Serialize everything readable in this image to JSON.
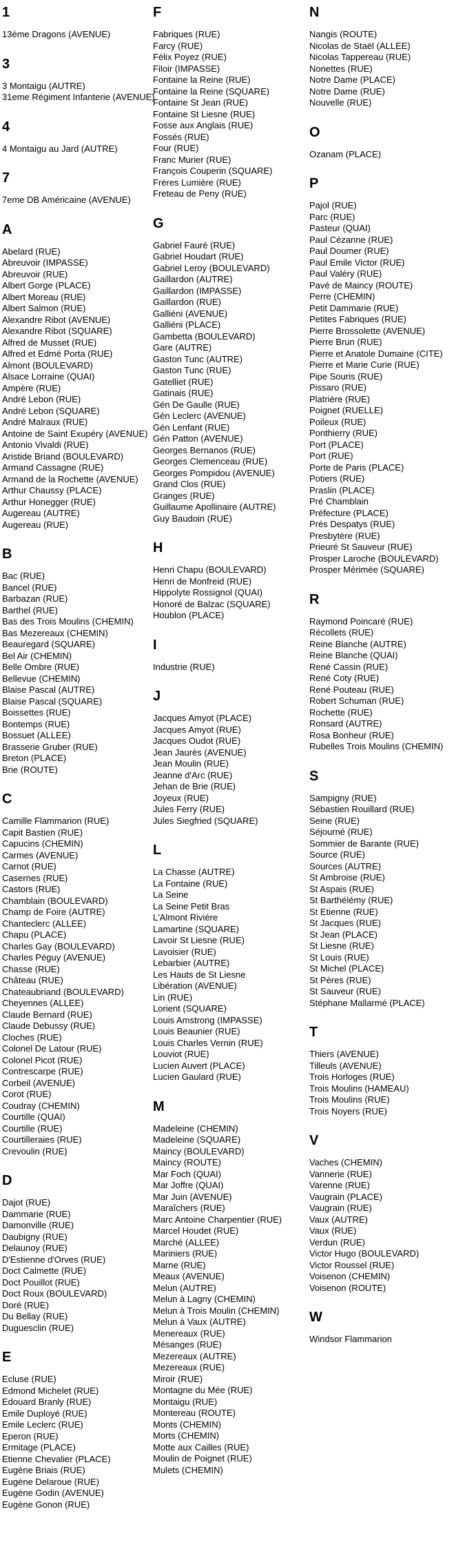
{
  "page": {
    "background": "#ffffff",
    "text_color": "#000000"
  },
  "index": {
    "columns": [
      {
        "sections": [
          {
            "letter": "1",
            "entries": [
              "13ème Dragons (AVENUE)"
            ]
          },
          {
            "letter": "3",
            "entries": [
              "3 Montaigu (AUTRE)",
              "31eme Régiment Infanterie (AVENUE)"
            ]
          },
          {
            "letter": "4",
            "entries": [
              "4 Montaigu au Jard (AUTRE)"
            ]
          },
          {
            "letter": "7",
            "entries": [
              "7eme DB Américaine (AVENUE)"
            ]
          },
          {
            "letter": "A",
            "entries": [
              "Abelard (RUE)",
              "Abreuvoir (IMPASSE)",
              "Abreuvoir (RUE)",
              "Albert Gorge (PLACE)",
              "Albert Moreau (RUE)",
              "Albert Salmon (RUE)",
              "Alexandre Ribot (AVENUE)",
              "Alexandre Ribot (SQUARE)",
              "Alfred de Musset (RUE)",
              "Alfred et Edmé Porta (RUE)",
              "Almont (BOULEVARD)",
              "Alsace Lorraine (QUAI)",
              "Ampère (RUE)",
              "André Lebon (RUE)",
              "André Lebon (SQUARE)",
              "André Malraux (RUE)",
              "Antoine de Saint Exupéry (AVENUE)",
              "Antonio Vivaldi (RUE)",
              "Aristide Briand (BOULEVARD)",
              "Armand Cassagne (RUE)",
              "Armand de la Rochette (AVENUE)",
              "Arthur Chaussy (PLACE)",
              "Arthur Honegger (RUE)",
              "Augereau (AUTRE)",
              "Augereau (RUE)"
            ]
          },
          {
            "letter": "B",
            "entries": [
              "Bac (RUE)",
              "Bancel (RUE)",
              "Barbazan (RUE)",
              "Barthel (RUE)",
              "Bas des Trois Moulins (CHEMIN)",
              "Bas Mezereaux (CHEMIN)",
              "Beauregard (SQUARE)",
              "Bel Air (CHEMIN)",
              "Belle Ombre (RUE)",
              "Bellevue (CHEMIN)",
              "Blaise Pascal (AUTRE)",
              "Blaise Pascal (SQUARE)",
              "Boissettes (RUE)",
              "Bontemps (RUE)",
              "Bossuet (ALLEE)",
              "Brasserie Gruber (RUE)",
              "Breton (PLACE)",
              "Brie (ROUTE)"
            ]
          },
          {
            "letter": "C",
            "entries": [
              "Camille Flammarion (RUE)",
              "Capit Bastien (RUE)",
              "Capucins (CHEMIN)",
              "Carmes (AVENUE)",
              "Carnot (RUE)",
              "Casernes (RUE)",
              "Castors (RUE)",
              "Chamblain (BOULEVARD)",
              "Champ de Foire (AUTRE)",
              "Chanteclerc (ALLEE)",
              "Chapu (PLACE)",
              "Charles Gay (BOULEVARD)",
              "Charles Péguy (AVENUE)",
              "Chasse (RUE)",
              "Château (RUE)",
              "Chateaubriand (BOULEVARD)",
              "Cheyennes (ALLEE)",
              "Claude Bernard (RUE)",
              "Claude Debussy (RUE)",
              "Cloches (RUE)",
              "Colonel De Latour (RUE)",
              "Colonel Picot (RUE)",
              "Contrescarpe (RUE)",
              "Corbeil (AVENUE)",
              "Corot (RUE)",
              "Coudray (CHEMIN)",
              "Courtille (QUAI)",
              "Courtille (RUE)",
              "Courtilleraies (RUE)",
              "Crevoulin (RUE)"
            ]
          },
          {
            "letter": "D",
            "entries": [
              "Dajot (RUE)",
              "Dammarie (RUE)",
              "Damonville (RUE)",
              "Daubigny (RUE)",
              "Delaunoy (RUE)",
              "D'Estienne d'Orves (RUE)",
              "Doct Calmette (RUE)",
              "Doct Pouillot (RUE)",
              "Doct Roux (BOULEVARD)",
              "Doré (RUE)",
              "Du Bellay (RUE)",
              "Duguesclin (RUE)"
            ]
          },
          {
            "letter": "E",
            "entries": [
              "Ecluse (RUE)",
              "Edmond Michelet (RUE)",
              "Edouard Branly (RUE)",
              "Emile Duployé (RUE)",
              "Emile Leclerc (RUE)",
              "Eperon (RUE)",
              "Ermitage (PLACE)",
              "Etienne Chevalier (PLACE)",
              "Eugène Briais (RUE)",
              "Eugène Delaroue (RUE)",
              "Eugène Godin (AVENUE)",
              "Eugène Gonon (RUE)"
            ]
          }
        ]
      },
      {
        "sections": [
          {
            "letter": "F",
            "entries": [
              "Fabriques (RUE)",
              "Farcy (RUE)",
              "Félix Poyez (RUE)",
              "Filoir (IMPASSE)",
              "Fontaine la Reine (RUE)",
              "Fontaine la Reine (SQUARE)",
              "Fontaine St Jean (RUE)",
              "Fontaine St Liesne (RUE)",
              "Fosse aux Anglais (RUE)",
              "Fossés (RUE)",
              "Four (RUE)",
              "Franc Murier (RUE)",
              "François Couperin (SQUARE)",
              "Frères Lumière (RUE)",
              "Freteau de Peny (RUE)"
            ]
          },
          {
            "letter": "G",
            "entries": [
              "Gabriel Fauré (RUE)",
              "Gabriel Houdart (RUE)",
              "Gabriel Leroy (BOULEVARD)",
              "Gaillardon (AUTRE)",
              "Gaillardon (IMPASSE)",
              "Gaillardon (RUE)",
              "Galliéni (AVENUE)",
              "Galliéni (PLACE)",
              "Gambetta (BOULEVARD)",
              "Gare (AUTRE)",
              "Gaston Tunc (AUTRE)",
              "Gaston Tunc (RUE)",
              "Gatelliet (RUE)",
              "Gatinais (RUE)",
              "Gén De Gaulle (RUE)",
              "Gén Leclerc (AVENUE)",
              "Gén Lenfant (RUE)",
              "Gén Patton (AVENUE)",
              "Georges Bernanos (RUE)",
              "Georges Clemenceau (RUE)",
              "Georges Pompidou (AVENUE)",
              "Grand Clos (RUE)",
              "Granges (RUE)",
              "Guillaume Apollinaire (AUTRE)",
              "Guy Baudoin (RUE)"
            ]
          },
          {
            "letter": "H",
            "entries": [
              "Henri Chapu (BOULEVARD)",
              "Henri de Monfreid (RUE)",
              "Hippolyte Rossignol (QUAI)",
              "Honoré de Balzac (SQUARE)",
              "Houblon (PLACE)"
            ]
          },
          {
            "letter": "I",
            "entries": [
              "Industrie (RUE)"
            ]
          },
          {
            "letter": "J",
            "entries": [
              "Jacques Amyot (PLACE)",
              "Jacques Amyot (RUE)",
              "Jacques Oudot (RUE)",
              "Jean Jaurès (AVENUE)",
              "Jean Moulin (RUE)",
              "Jeanne d'Arc (RUE)",
              "Jehan de Brie (RUE)",
              "Joyeux (RUE)",
              "Jules Ferry (RUE)",
              "Jules Siegfried (SQUARE)"
            ]
          },
          {
            "letter": "L",
            "entries": [
              "La Chasse (AUTRE)",
              "La Fontaine (RUE)",
              "La Seine",
              "La Seine Petit Bras",
              "L'Almont Rivière",
              "Lamartine (SQUARE)",
              "Lavoir St Liesne (RUE)",
              "Lavoisier (RUE)",
              "Lebarbier (AUTRE)",
              "Les Hauts de St Liesne",
              "Libération (AVENUE)",
              "Lin (RUE)",
              "Lorient (SQUARE)",
              "Louis Amstrong (IMPASSE)",
              "Louis Beaunier (RUE)",
              "Louis Charles Vernin (RUE)",
              "Louviot (RUE)",
              "Lucien Auvert (PLACE)",
              "Lucien Gaulard (RUE)"
            ]
          },
          {
            "letter": "M",
            "entries": [
              "Madeleine (CHEMIN)",
              "Madeleine (SQUARE)",
              "Maincy (BOULEVARD)",
              "Maincy (ROUTE)",
              "Mar Foch (QUAI)",
              "Mar Joffre (QUAI)",
              "Mar Juin (AVENUE)",
              "Maraîchers (RUE)",
              "Marc Antoine Charpentier (RUE)",
              "Marcel Houdet (RUE)",
              "Marché (ALLEE)",
              "Mariniers (RUE)",
              "Marne (RUE)",
              "Meaux (AVENUE)",
              "Melun (AUTRE)",
              "Melun à Lagny (CHEMIN)",
              "Melun à Trois Moulin (CHEMIN)",
              "Melun à Vaux (AUTRE)",
              "Menereaux (RUE)",
              "Mésanges (RUE)",
              "Mezereaux (AUTRE)",
              "Mezereaux (RUE)",
              "Miroir (RUE)",
              "Montagne du Mée (RUE)",
              "Montaigu (RUE)",
              "Montereau (ROUTE)",
              "Monts (CHEMIN)",
              "Morts (CHEMIN)",
              "Motte aux Cailles (RUE)",
              "Moulin de Poignet (RUE)",
              "Mulets (CHEMIN)"
            ]
          }
        ]
      },
      {
        "sections": [
          {
            "letter": "N",
            "entries": [
              "Nangis (ROUTE)",
              "Nicolas de Staël (ALLEE)",
              "Nicolas Tappereau (RUE)",
              "Nonettes (RUE)",
              "Notre Dame (PLACE)",
              "Notre Dame (RUE)",
              "Nouvelle (RUE)"
            ]
          },
          {
            "letter": "O",
            "entries": [
              "Ozanam (PLACE)"
            ]
          },
          {
            "letter": "P",
            "entries": [
              "Pajol (RUE)",
              "Parc (RUE)",
              "Pasteur (QUAI)",
              "Paul Cézanne (RUE)",
              "Paul Doumer (RUE)",
              "Paul Emile Victor (RUE)",
              "Paul Valéry (RUE)",
              "Pavé de Maincy (ROUTE)",
              "Perre (CHEMIN)",
              "Petit Dammarie (RUE)",
              "Petites Fabriques (RUE)",
              "Pierre Brossolette (AVENUE)",
              "Pierre Brun (RUE)",
              "Pierre et Anatole Dumaine (CITE)",
              "Pierre et Marie Curie (RUE)",
              "Pipe Souris (RUE)",
              "Pissaro (RUE)",
              "Platrière (RUE)",
              "Poignet (RUELLE)",
              "Poileux (RUE)",
              "Ponthierry (RUE)",
              "Port (PLACE)",
              "Port (RUE)",
              "Porte de Paris (PLACE)",
              "Potiers (RUE)",
              "Praslin (PLACE)",
              "Pré Chamblain",
              "Préfecture (PLACE)",
              "Prés Despatys (RUE)",
              "Presbytère (RUE)",
              "Prieuré St Sauveur (RUE)",
              "Prosper Laroche (BOULEVARD)",
              "Prosper Mérimée (SQUARE)"
            ]
          },
          {
            "letter": "R",
            "entries": [
              "Raymond Poincaré (RUE)",
              "Récollets (RUE)",
              "Reine Blanche (AUTRE)",
              "Reine Blanche (QUAI)",
              "René Cassin (RUE)",
              "René Coty (RUE)",
              "René Pouteau (RUE)",
              "Robert Schuman (RUE)",
              "Rochette (RUE)",
              "Ronsard (AUTRE)",
              "Rosa Bonheur (RUE)",
              "Rubelles Trois Moulins (CHEMIN)"
            ]
          },
          {
            "letter": "S",
            "entries": [
              "Sampigny (RUE)",
              "Sébastien Rouillard (RUE)",
              "Seine (RUE)",
              "Séjourné (RUE)",
              "Sommier de Barante (RUE)",
              "Source (RUE)",
              "Sources (AUTRE)",
              "St Ambroise (RUE)",
              "St Aspais (RUE)",
              "St Barthélémy (RUE)",
              "St Etienne (RUE)",
              "St Jacques (RUE)",
              "St Jean (PLACE)",
              "St Liesne (RUE)",
              "St Louis (RUE)",
              "St Michel (PLACE)",
              "St Pères (RUE)",
              "St Sauveur (RUE)",
              "Stéphane Mallarmé (PLACE)"
            ]
          },
          {
            "letter": "T",
            "entries": [
              "Thiers (AVENUE)",
              "Tilleuls (AVENUE)",
              "Trois Horloges (RUE)",
              "Trois Moulins (HAMEAU)",
              "Trois Moulins (RUE)",
              "Trois Noyers (RUE)"
            ]
          },
          {
            "letter": "V",
            "entries": [
              "Vaches (CHEMIN)",
              "Vannerie (RUE)",
              "Varenne (RUE)",
              "Vaugrain (PLACE)",
              "Vaugrain (RUE)",
              "Vaux (AUTRE)",
              "Vaux (RUE)",
              "Verdun (RUE)",
              "Victor Hugo (BOULEVARD)",
              "Victor Roussel (RUE)",
              "Voisenon (CHEMIN)",
              "Voisenon (ROUTE)"
            ]
          },
          {
            "letter": "W",
            "entries": [
              "Windsor Flammarion"
            ]
          }
        ]
      }
    ]
  }
}
